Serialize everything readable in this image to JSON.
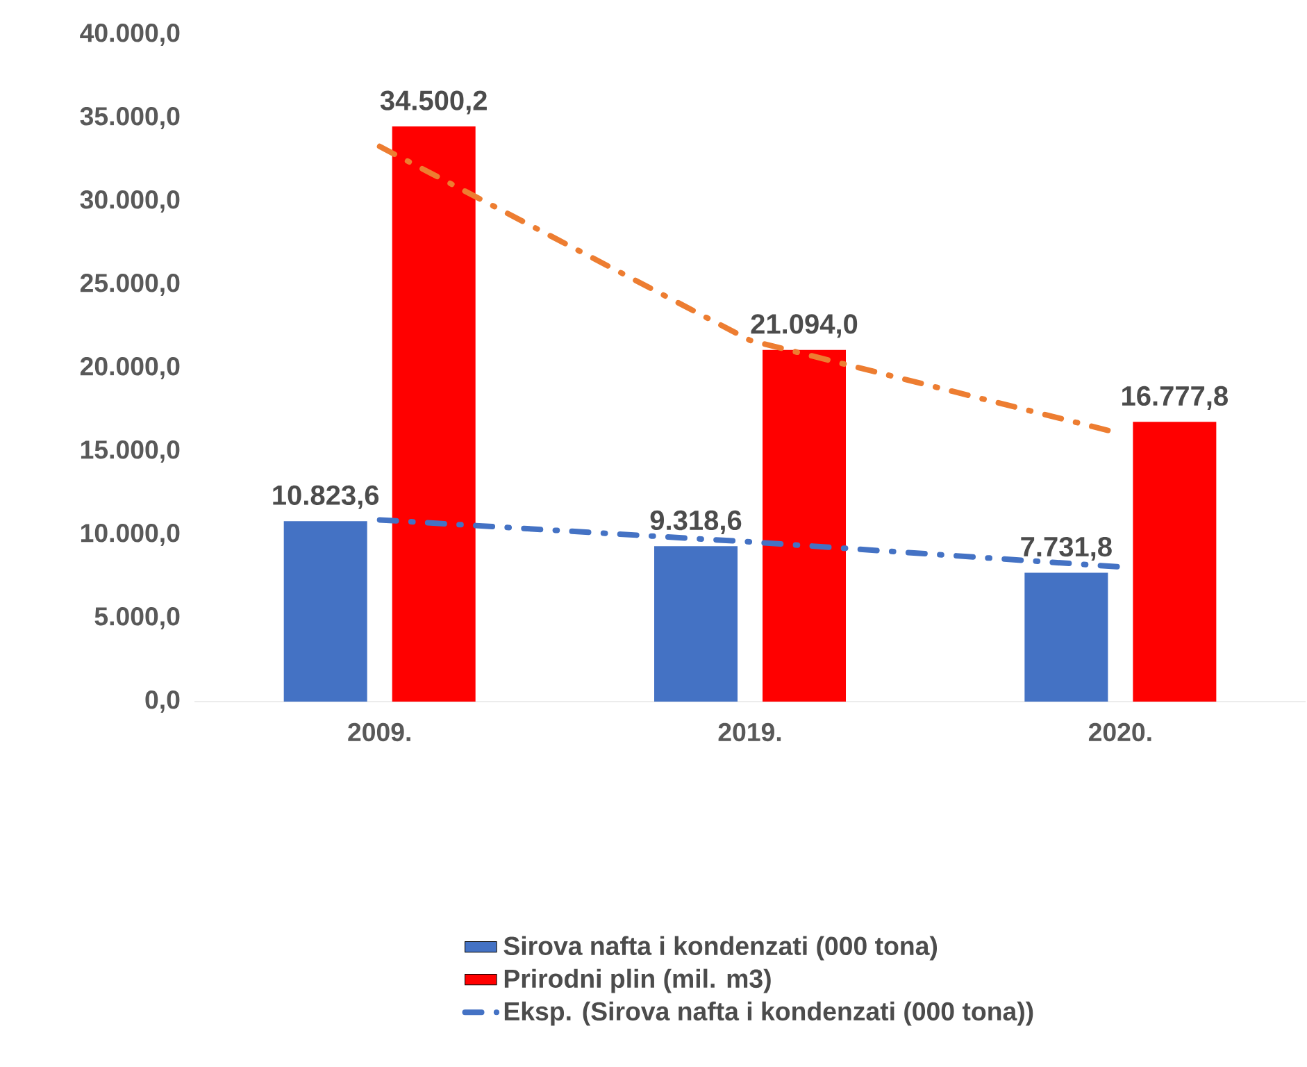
{
  "chart_data": {
    "type": "bar",
    "categories": [
      "2009.",
      "2019.",
      "2020."
    ],
    "ylim": [
      0,
      40000
    ],
    "yticks": [
      {
        "value": 0,
        "label": "0,0"
      },
      {
        "value": 5000,
        "label": "5.000,0"
      },
      {
        "value": 10000,
        "label": "10.000,0"
      },
      {
        "value": 15000,
        "label": "15.000,0"
      },
      {
        "value": 20000,
        "label": "20.000,0"
      },
      {
        "value": 25000,
        "label": "25.000,0"
      },
      {
        "value": 30000,
        "label": "30.000,0"
      },
      {
        "value": 35000,
        "label": "35.000,0"
      },
      {
        "value": 40000,
        "label": "40.000,0"
      }
    ],
    "legend": "bottom",
    "grid": false,
    "series": [
      {
        "name": "Sirova nafta i kondenzati (000 tona)",
        "color": "#4472c4",
        "values": [
          10823.6,
          9318.6,
          7731.8
        ],
        "value_labels": [
          "10.823,6",
          "9.318,6",
          "7.731,8"
        ]
      },
      {
        "name": "Prirodni plin (mil. m3)",
        "color": "#ff0000",
        "values": [
          34500.2,
          21094.0,
          16777.8
        ],
        "value_labels": [
          "34.500,2",
          "21.094,0",
          "16.777,8"
        ]
      },
      {
        "name": "Eksp. (Sirova nafta i kondenzati (000 tona))",
        "type": "line",
        "color": "#4472c4",
        "line_style": "dashed",
        "marker": "none",
        "values": [
          10900,
          9580,
          8080
        ]
      },
      {
        "type": "line",
        "color": "#ed7d31",
        "line_style": "dashed",
        "marker": "none",
        "values": [
          33300,
          21670,
          16080
        ]
      }
    ]
  }
}
